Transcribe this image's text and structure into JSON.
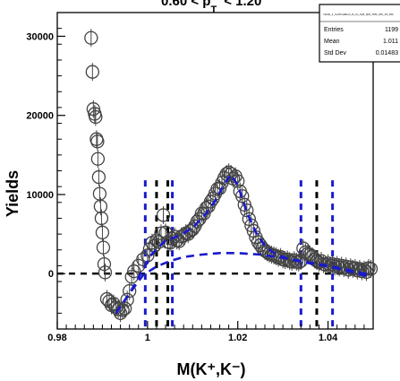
{
  "header": {
    "title_fragment": "0.60 < p",
    "title_sub": "T",
    "title_tail": "< 1.20"
  },
  "stats_box": {
    "name": "Yields_1_CutTimeBent_8_nrs_0p5_0p5_TRK_MC_15_K0L",
    "rows": [
      {
        "label": "Entries",
        "value": "1199"
      },
      {
        "label": "Mean",
        "value": "1.011"
      },
      {
        "label": "Std Dev",
        "value": "0.01483"
      }
    ]
  },
  "chart_data": {
    "type": "scatter",
    "xlabel": "M(K⁺,K⁻)",
    "ylabel": "Yields",
    "xlim": [
      0.98,
      1.05
    ],
    "ylim": [
      -7000,
      33000
    ],
    "x_ticks": [
      0.98,
      1.0,
      1.02,
      1.04
    ],
    "x_tick_labels": [
      "0.98",
      "1",
      "1.02",
      "1.04"
    ],
    "y_ticks": [
      0,
      10000,
      20000,
      30000
    ],
    "y_tick_labels": [
      "0",
      "10000",
      "20000",
      "30000"
    ],
    "grid": false,
    "series": [
      {
        "values": [
          [
            0.9875,
            29800
          ],
          [
            0.9878,
            25500
          ],
          [
            0.988,
            20800
          ],
          [
            0.9883,
            20200
          ],
          [
            0.9885,
            19800
          ],
          [
            0.9887,
            17000
          ],
          [
            0.9889,
            16700
          ],
          [
            0.989,
            14500
          ],
          [
            0.9892,
            12200
          ],
          [
            0.9894,
            10100
          ],
          [
            0.9896,
            8500
          ],
          [
            0.9898,
            7000
          ],
          [
            0.99,
            5200
          ],
          [
            0.9902,
            3300
          ],
          [
            0.9904,
            1200
          ],
          [
            0.9906,
            150
          ],
          [
            0.991,
            -3200
          ],
          [
            0.9915,
            -3500
          ],
          [
            0.992,
            -4000
          ],
          [
            0.9925,
            -3800
          ],
          [
            0.993,
            -4300
          ],
          [
            0.9935,
            -4500
          ],
          [
            0.994,
            -5000
          ],
          [
            0.9945,
            -4600
          ],
          [
            0.995,
            -4400
          ],
          [
            0.9955,
            -3300
          ],
          [
            0.996,
            -2200
          ],
          [
            0.9965,
            -400
          ],
          [
            0.997,
            300
          ],
          [
            0.998,
            1000
          ],
          [
            0.999,
            1800
          ],
          [
            1.0,
            2300
          ],
          [
            1.0005,
            3100
          ],
          [
            1.001,
            3900
          ],
          [
            1.0015,
            3500
          ],
          [
            1.002,
            4200
          ],
          [
            1.0025,
            4000
          ],
          [
            1.003,
            5100
          ],
          [
            1.0035,
            7400
          ],
          [
            1.004,
            5200
          ],
          [
            1.0045,
            4000
          ],
          [
            1.005,
            3900
          ],
          [
            1.0055,
            4400
          ],
          [
            1.006,
            4700
          ],
          [
            1.0065,
            4200
          ],
          [
            1.007,
            4100
          ],
          [
            1.0075,
            4700
          ],
          [
            1.008,
            4800
          ],
          [
            1.0085,
            5100
          ],
          [
            1.009,
            5000
          ],
          [
            1.0095,
            5400
          ],
          [
            1.01,
            5600
          ],
          [
            1.0105,
            6000
          ],
          [
            1.011,
            6600
          ],
          [
            1.0115,
            6900
          ],
          [
            1.012,
            7600
          ],
          [
            1.0125,
            7600
          ],
          [
            1.013,
            8300
          ],
          [
            1.0135,
            8500
          ],
          [
            1.014,
            9100
          ],
          [
            1.0145,
            9500
          ],
          [
            1.015,
            10100
          ],
          [
            1.0155,
            10700
          ],
          [
            1.016,
            10800
          ],
          [
            1.0165,
            11500
          ],
          [
            1.017,
            12100
          ],
          [
            1.0175,
            12600
          ],
          [
            1.018,
            12800
          ],
          [
            1.0185,
            12600
          ],
          [
            1.019,
            12000
          ],
          [
            1.0195,
            12300
          ],
          [
            1.02,
            11700
          ],
          [
            1.0205,
            10400
          ],
          [
            1.021,
            9800
          ],
          [
            1.0215,
            8700
          ],
          [
            1.022,
            8000
          ],
          [
            1.0225,
            6900
          ],
          [
            1.023,
            6100
          ],
          [
            1.0235,
            5400
          ],
          [
            1.024,
            4600
          ],
          [
            1.0245,
            4000
          ],
          [
            1.025,
            3600
          ],
          [
            1.0255,
            3200
          ],
          [
            1.026,
            2900
          ],
          [
            1.0265,
            2700
          ],
          [
            1.027,
            2500
          ],
          [
            1.0275,
            2400
          ],
          [
            1.028,
            2300
          ],
          [
            1.0285,
            2200
          ],
          [
            1.029,
            2000
          ],
          [
            1.0295,
            2100
          ],
          [
            1.03,
            1800
          ],
          [
            1.0305,
            1700
          ],
          [
            1.031,
            1800
          ],
          [
            1.0315,
            1600
          ],
          [
            1.032,
            1500
          ],
          [
            1.0325,
            1700
          ],
          [
            1.033,
            1500
          ],
          [
            1.0335,
            1400
          ],
          [
            1.034,
            1600
          ],
          [
            1.0345,
            3200
          ],
          [
            1.035,
            2700
          ],
          [
            1.0355,
            2500
          ],
          [
            1.036,
            2400
          ],
          [
            1.0365,
            2200
          ],
          [
            1.037,
            1800
          ],
          [
            1.0375,
            1600
          ],
          [
            1.038,
            1400
          ],
          [
            1.0385,
            1600
          ],
          [
            1.039,
            1200
          ],
          [
            1.0395,
            1100
          ],
          [
            1.04,
            1300
          ],
          [
            1.0405,
            1000
          ],
          [
            1.041,
            1200
          ],
          [
            1.0415,
            900
          ],
          [
            1.042,
            1100
          ],
          [
            1.0425,
            800
          ],
          [
            1.043,
            1000
          ],
          [
            1.0435,
            700
          ],
          [
            1.044,
            900
          ],
          [
            1.0445,
            500
          ],
          [
            1.045,
            800
          ],
          [
            1.0455,
            600
          ],
          [
            1.046,
            700
          ],
          [
            1.0465,
            400
          ],
          [
            1.047,
            600
          ],
          [
            1.0475,
            300
          ],
          [
            1.048,
            500
          ],
          [
            1.0485,
            200
          ],
          [
            1.049,
            700
          ],
          [
            1.0495,
            600
          ]
        ]
      }
    ],
    "fit_total": [
      [
        0.993,
        -5000
      ],
      [
        0.996,
        -2500
      ],
      [
        0.999,
        500
      ],
      [
        1.001,
        2500
      ],
      [
        1.004,
        4200
      ],
      [
        1.007,
        4800
      ],
      [
        1.01,
        5800
      ],
      [
        1.013,
        7600
      ],
      [
        1.015,
        9200
      ],
      [
        1.017,
        11300
      ],
      [
        1.0185,
        12500
      ],
      [
        1.02,
        11200
      ],
      [
        1.022,
        7800
      ],
      [
        1.024,
        5200
      ],
      [
        1.026,
        3500
      ],
      [
        1.028,
        2600
      ],
      [
        1.031,
        1900
      ],
      [
        1.034,
        1500
      ],
      [
        1.037,
        1200
      ],
      [
        1.04,
        900
      ],
      [
        1.043,
        500
      ],
      [
        1.046,
        100
      ],
      [
        1.049,
        -400
      ]
    ],
    "fit_background": [
      [
        0.993,
        -5000
      ],
      [
        0.996,
        -2500
      ],
      [
        0.999,
        -200
      ],
      [
        1.002,
        900
      ],
      [
        1.005,
        1600
      ],
      [
        1.008,
        2100
      ],
      [
        1.012,
        2400
      ],
      [
        1.016,
        2600
      ],
      [
        1.02,
        2600
      ],
      [
        1.025,
        2400
      ],
      [
        1.03,
        2000
      ],
      [
        1.035,
        1500
      ],
      [
        1.04,
        1000
      ],
      [
        1.045,
        400
      ],
      [
        1.049,
        -100
      ]
    ],
    "vertical_lines": [
      {
        "x": 0.9995,
        "color": "#1a1acc"
      },
      {
        "x": 1.002,
        "color": "#000000"
      },
      {
        "x": 1.0045,
        "color": "#000000"
      },
      {
        "x": 1.0055,
        "color": "#1a1acc"
      },
      {
        "x": 1.034,
        "color": "#1a1acc"
      },
      {
        "x": 1.0375,
        "color": "#000000"
      },
      {
        "x": 1.041,
        "color": "#1a1acc"
      }
    ],
    "vertical_line_top": 11800,
    "zero_line": 0,
    "colors": {
      "marker": "#444444",
      "fit": "#1a1acc",
      "axis": "#000000"
    }
  }
}
